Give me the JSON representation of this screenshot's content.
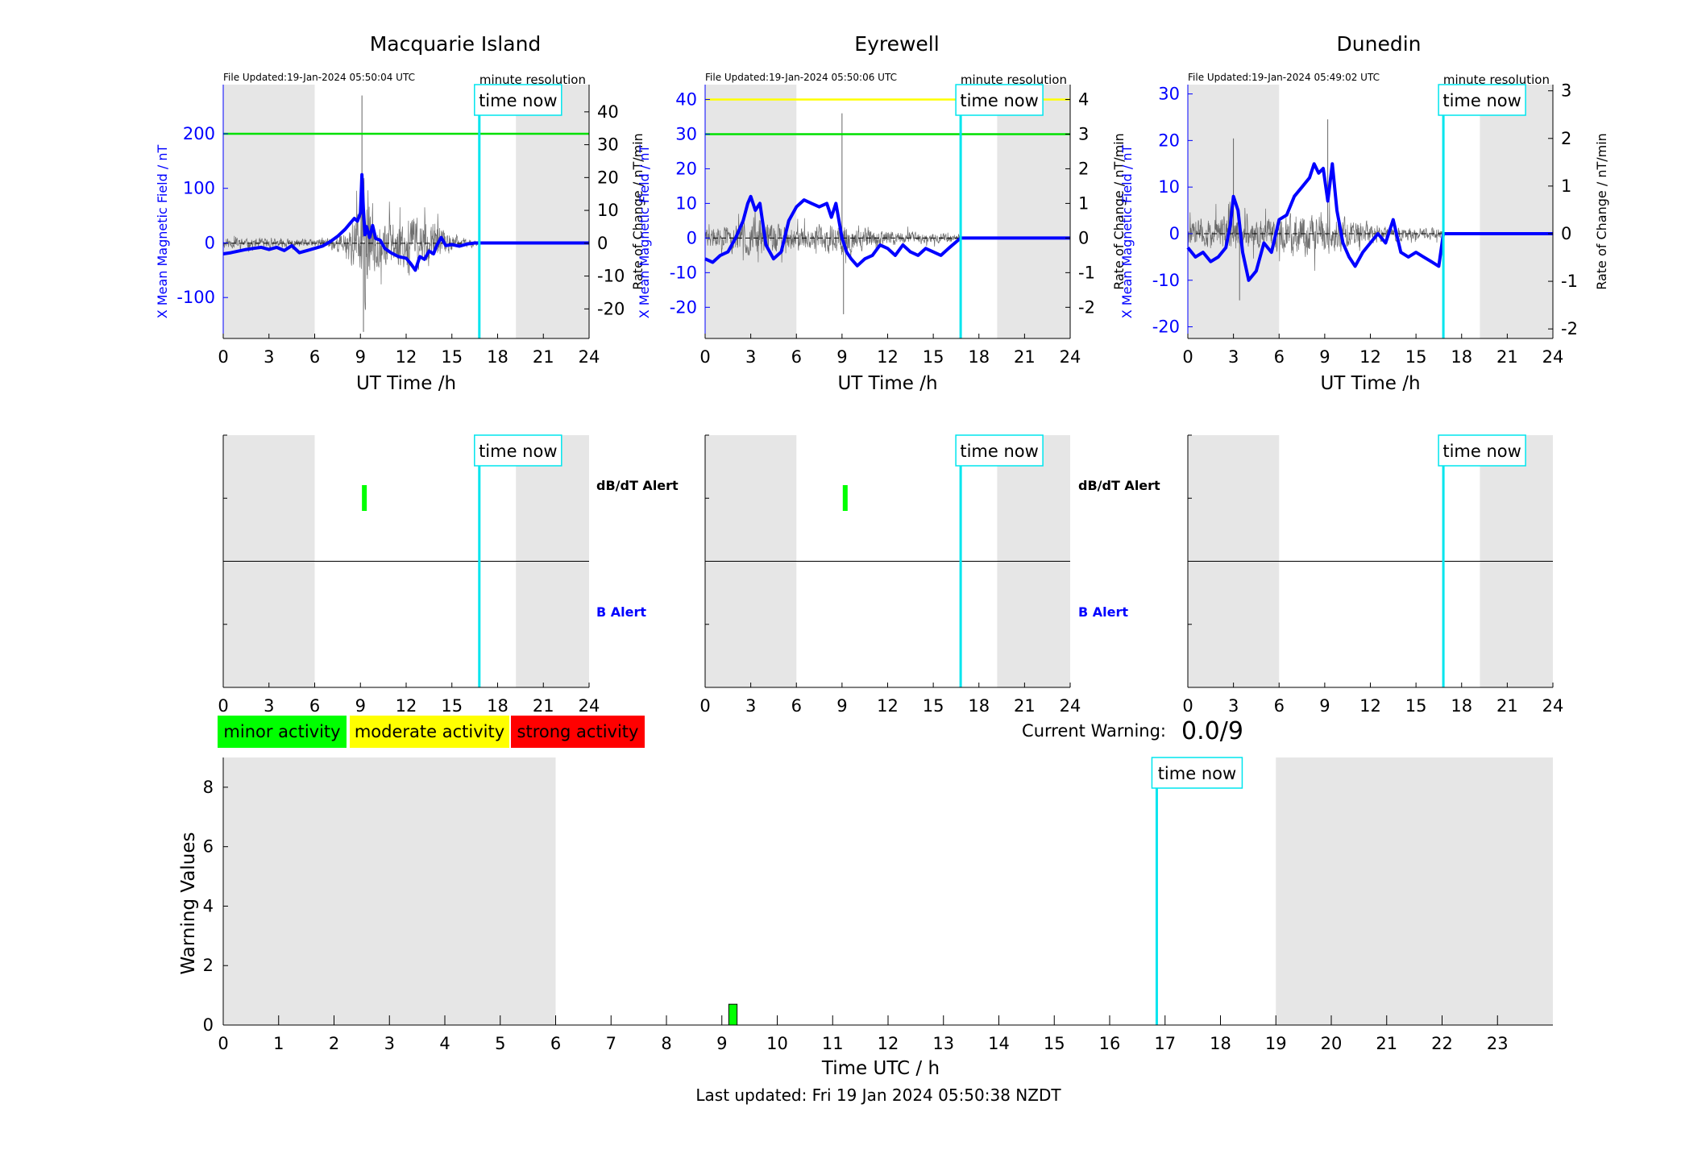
{
  "colors": {
    "night_shade": "#e6e6e6",
    "now_line": "#00e5ee",
    "mean_field": "#0000ff",
    "rate": "#555555",
    "minor": "#00ff00",
    "moderate": "#ffff00",
    "strong": "#ff0000",
    "right_axis_text": "#000000"
  },
  "labels": {
    "time_now": "time now",
    "minute_resolution": "minute resolution",
    "left_ylabel": "X Mean Magnetic Field / nT",
    "right_ylabel": "Rate of Change / nT/min",
    "xlabel": "UT Time /h",
    "dbdt_alert": "dB/dT Alert",
    "b_alert": "B Alert",
    "current_warning_label": "Current Warning:",
    "current_warning_value": "0.0/9",
    "last_updated": "Last updated: Fri 19 Jan 2024 05:50:38 NZDT"
  },
  "legend": {
    "minor": "minor activity",
    "moderate": "moderate activity",
    "strong": "strong activity"
  },
  "stations": [
    {
      "title": "Macquarie Island",
      "file_updated": "File Updated:19-Jan-2024 05:50:04 UTC"
    },
    {
      "title": "Eyrewell",
      "file_updated": "File Updated:19-Jan-2024 05:50:06 UTC"
    },
    {
      "title": "Dunedin",
      "file_updated": "File Updated:19-Jan-2024 05:49:02 UTC"
    }
  ],
  "chart_data": [
    {
      "type": "line",
      "station": "Macquarie Island",
      "xlabel": "UT Time /h",
      "ylabel": "X Mean Magnetic Field / nT",
      "y2label": "Rate of Change / nT/min",
      "xlim": [
        0,
        24
      ],
      "ylim": [
        -175,
        290
      ],
      "y2lim": [
        -29,
        48.3
      ],
      "xticks": [
        0,
        3,
        6,
        9,
        12,
        15,
        18,
        21,
        24
      ],
      "yticks": [
        -100,
        0,
        100,
        200
      ],
      "y2ticks": [
        -20,
        -10,
        0,
        10,
        20,
        30,
        40
      ],
      "night": [
        [
          0,
          6
        ],
        [
          19.2,
          24
        ]
      ],
      "now": 16.8,
      "thresholds": [
        {
          "value": 200,
          "color": "#00e000"
        }
      ],
      "mean_field": {
        "x": [
          0,
          0.5,
          1,
          1.5,
          2,
          2.5,
          3,
          3.5,
          4,
          4.5,
          5,
          5.5,
          6,
          6.5,
          7,
          7.5,
          8,
          8.3,
          8.6,
          8.8,
          9,
          9.1,
          9.2,
          9.3,
          9.4,
          9.6,
          9.8,
          10,
          10.3,
          10.6,
          11,
          11.5,
          12,
          12.3,
          12.6,
          12.9,
          13.2,
          13.5,
          13.8,
          14,
          14.3,
          14.6,
          15,
          15.5,
          16,
          16.5,
          16.8,
          24
        ],
        "y": [
          -20,
          -18,
          -15,
          -12,
          -10,
          -8,
          -12,
          -8,
          -14,
          -5,
          -18,
          -14,
          -10,
          -6,
          2,
          12,
          25,
          35,
          45,
          40,
          55,
          125,
          60,
          15,
          30,
          10,
          32,
          8,
          5,
          -10,
          -18,
          -25,
          -28,
          -38,
          -50,
          -25,
          -30,
          -15,
          -20,
          -5,
          10,
          -5,
          -3,
          -6,
          -2,
          0,
          0,
          0
        ]
      },
      "rate_seed": 11,
      "rate_profile": [
        [
          0,
          2
        ],
        [
          6,
          1.5
        ],
        [
          8,
          4
        ],
        [
          8.8,
          14
        ],
        [
          9.3,
          26
        ],
        [
          10,
          10
        ],
        [
          11,
          8
        ],
        [
          12,
          12
        ],
        [
          14,
          8
        ],
        [
          15,
          3
        ],
        [
          16.8,
          1
        ]
      ],
      "rate_spikes": [
        [
          9.1,
          45
        ],
        [
          9.2,
          -27
        ]
      ]
    },
    {
      "type": "line",
      "station": "Eyrewell",
      "xlabel": "UT Time /h",
      "ylabel": "X Mean Magnetic Field / nT",
      "y2label": "Rate of Change / nT/min",
      "xlim": [
        0,
        24
      ],
      "ylim": [
        -29,
        44.3
      ],
      "y2lim": [
        -2.9,
        4.43
      ],
      "xticks": [
        0,
        3,
        6,
        9,
        12,
        15,
        18,
        21,
        24
      ],
      "yticks": [
        -20,
        -10,
        0,
        10,
        20,
        30,
        40
      ],
      "y2ticks": [
        -2,
        -1,
        0,
        1,
        2,
        3,
        4
      ],
      "night": [
        [
          0,
          6
        ],
        [
          19.2,
          24
        ]
      ],
      "now": 16.8,
      "thresholds": [
        {
          "value": 30,
          "color": "#00e000"
        },
        {
          "value": 40,
          "color": "#ffff00"
        }
      ],
      "mean_field": {
        "x": [
          0,
          0.5,
          1,
          1.5,
          2,
          2.5,
          2.8,
          3,
          3.3,
          3.6,
          4,
          4.5,
          5,
          5.5,
          6,
          6.5,
          7,
          7.5,
          8,
          8.3,
          8.6,
          9,
          9.3,
          9.6,
          10,
          10.5,
          11,
          11.5,
          12,
          12.5,
          13,
          13.5,
          14,
          14.5,
          15,
          15.5,
          16,
          16.8,
          24
        ],
        "y": [
          -6,
          -7,
          -5,
          -4,
          0,
          5,
          10,
          12,
          8,
          10,
          -2,
          -6,
          -4,
          5,
          9,
          11,
          10,
          9,
          10,
          6,
          10,
          0,
          -4,
          -6,
          -8,
          -6,
          -5,
          -2,
          -3,
          -5,
          -2,
          -4,
          -5,
          -3,
          -4,
          -5,
          -3,
          0,
          0
        ]
      },
      "rate_seed": 29,
      "rate_profile": [
        [
          0,
          0.3
        ],
        [
          2.5,
          0.6
        ],
        [
          4,
          0.7
        ],
        [
          6,
          0.4
        ],
        [
          9,
          0.6
        ],
        [
          12,
          0.25
        ],
        [
          16.8,
          0.15
        ]
      ],
      "rate_spikes": [
        [
          9.0,
          3.6
        ],
        [
          9.1,
          -2.2
        ]
      ]
    },
    {
      "type": "line",
      "station": "Dunedin",
      "xlabel": "UT Time /h",
      "ylabel": "X Mean Magnetic Field / nT",
      "y2label": "Rate of Change / nT/min",
      "xlim": [
        0,
        24
      ],
      "ylim": [
        -22.5,
        32
      ],
      "y2lim": [
        -2.2,
        3.13
      ],
      "xticks": [
        0,
        3,
        6,
        9,
        12,
        15,
        18,
        21,
        24
      ],
      "yticks": [
        -20,
        -10,
        0,
        10,
        20,
        30
      ],
      "y2ticks": [
        -2,
        -1,
        0,
        1,
        2,
        3
      ],
      "night": [
        [
          0,
          6
        ],
        [
          19.2,
          24
        ]
      ],
      "now": 16.8,
      "thresholds": [],
      "mean_field": {
        "x": [
          0,
          0.5,
          1,
          1.5,
          2,
          2.5,
          2.8,
          3,
          3.3,
          3.6,
          4,
          4.5,
          5,
          5.5,
          6,
          6.5,
          7,
          7.5,
          8,
          8.3,
          8.6,
          8.9,
          9.2,
          9.5,
          9.8,
          10.2,
          10.6,
          11,
          11.5,
          12,
          12.5,
          13,
          13.5,
          14,
          14.5,
          15,
          15.5,
          16,
          16.5,
          16.8,
          24
        ],
        "y": [
          -3,
          -5,
          -4,
          -6,
          -5,
          -3,
          2,
          8,
          5,
          -4,
          -10,
          -8,
          -2,
          -4,
          3,
          4,
          8,
          10,
          12,
          15,
          13,
          14,
          7,
          15,
          5,
          -2,
          -5,
          -7,
          -4,
          -2,
          0,
          -2,
          3,
          -4,
          -5,
          -4,
          -5,
          -6,
          -7,
          0,
          0
        ]
      },
      "rate_seed": 47,
      "rate_profile": [
        [
          0,
          0.35
        ],
        [
          3,
          0.5
        ],
        [
          5,
          0.35
        ],
        [
          7,
          0.6
        ],
        [
          9,
          0.5
        ],
        [
          11,
          0.35
        ],
        [
          13,
          0.2
        ],
        [
          16.8,
          0.15
        ]
      ],
      "rate_spikes": [
        [
          9.2,
          2.4
        ],
        [
          3.0,
          2.0
        ],
        [
          3.4,
          -1.4
        ]
      ]
    },
    {
      "type": "alert-strip",
      "station": "Macquarie Island",
      "xlim": [
        0,
        24
      ],
      "xticks": [
        0,
        3,
        6,
        9,
        12,
        15,
        18,
        21,
        24
      ],
      "night": [
        [
          0,
          6
        ],
        [
          19.2,
          24
        ]
      ],
      "now": 16.8,
      "dbdt_alerts": [
        {
          "start": 9.1,
          "end": 9.2,
          "level": "minor"
        }
      ],
      "b_alerts": []
    },
    {
      "type": "alert-strip",
      "station": "Eyrewell",
      "xlim": [
        0,
        24
      ],
      "xticks": [
        0,
        3,
        6,
        9,
        12,
        15,
        18,
        21,
        24
      ],
      "night": [
        [
          0,
          6
        ],
        [
          19.2,
          24
        ]
      ],
      "now": 16.8,
      "dbdt_alerts": [
        {
          "start": 9.05,
          "end": 9.15,
          "level": "minor"
        }
      ],
      "b_alerts": []
    },
    {
      "type": "alert-strip",
      "station": "Dunedin",
      "xlim": [
        0,
        24
      ],
      "xticks": [
        0,
        3,
        6,
        9,
        12,
        15,
        18,
        21,
        24
      ],
      "night": [
        [
          0,
          6
        ],
        [
          19.2,
          24
        ]
      ],
      "now": 16.8,
      "dbdt_alerts": [],
      "b_alerts": []
    },
    {
      "type": "bar",
      "xlabel": "Time UTC / h",
      "ylabel": "Warning Values",
      "xlim": [
        0,
        24
      ],
      "ylim": [
        0,
        9
      ],
      "xticks": [
        0,
        1,
        2,
        3,
        4,
        5,
        6,
        7,
        8,
        9,
        10,
        11,
        12,
        13,
        14,
        15,
        16,
        17,
        18,
        19,
        20,
        21,
        22,
        23
      ],
      "yticks": [
        0,
        2,
        4,
        6,
        8
      ],
      "night": [
        [
          0,
          6
        ],
        [
          19,
          24
        ]
      ],
      "now": 16.85,
      "bars": [
        {
          "x": 9.2,
          "width": 0.15,
          "value": 0.7,
          "level": "minor"
        }
      ]
    }
  ]
}
